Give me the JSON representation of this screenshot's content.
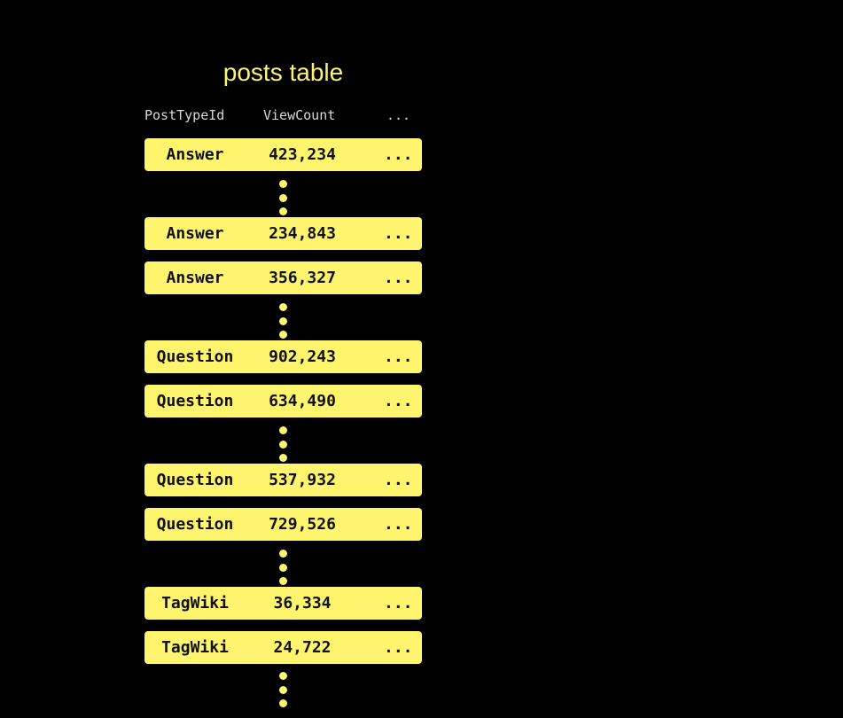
{
  "title": "posts table",
  "columns": [
    "PostTypeId",
    "ViewCount",
    "..."
  ],
  "rows": [
    {
      "type": "Answer",
      "views": "423,234",
      "more": "..."
    },
    {
      "type": "Answer",
      "views": "234,843",
      "more": "..."
    },
    {
      "type": "Answer",
      "views": "356,327",
      "more": "..."
    },
    {
      "type": "Question",
      "views": "902,243",
      "more": "..."
    },
    {
      "type": "Question",
      "views": "634,490",
      "more": "..."
    },
    {
      "type": "Question",
      "views": "537,932",
      "more": "..."
    },
    {
      "type": "Question",
      "views": "729,526",
      "more": "..."
    },
    {
      "type": "TagWiki",
      "views": "36,334",
      "more": "..."
    },
    {
      "type": "TagWiki",
      "views": "24,722",
      "more": "..."
    }
  ],
  "colors": {
    "accent": "#fef46e",
    "background": "#000000"
  }
}
